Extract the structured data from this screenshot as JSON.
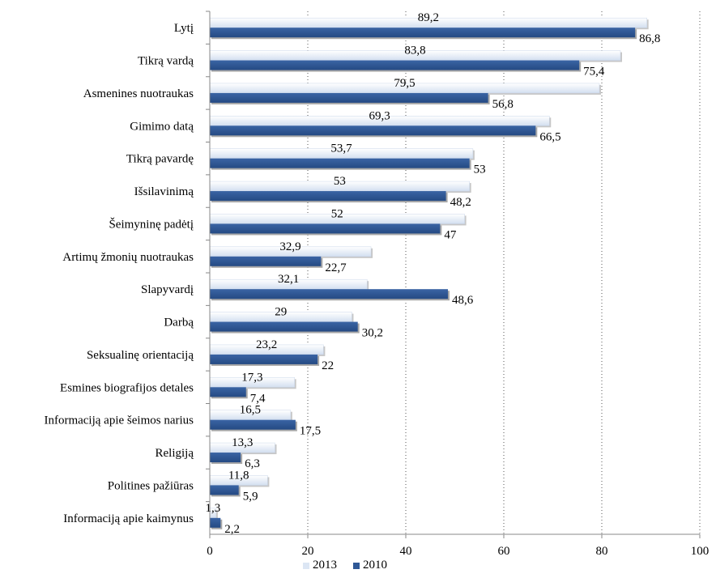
{
  "chart_data": {
    "type": "bar",
    "orientation": "horizontal",
    "categories": [
      "Lytį",
      "Tikrą vardą",
      "Asmenines nuotraukas",
      "Gimimo datą",
      "Tikrą pavardę",
      "Išsilavinimą",
      "Šeimyninę padėtį",
      "Artimų žmonių nuotraukas",
      "Slapyvardį",
      "Darbą",
      "Seksualinę orientaciją",
      "Esmines biografijos detales",
      "Informaciją apie šeimos narius",
      "Religiją",
      "Politines pažiūras",
      "Informaciją apie kaimynus"
    ],
    "series": [
      {
        "name": "2013",
        "color": "#dce6f4",
        "values": [
          89.2,
          83.8,
          79.5,
          69.3,
          53.7,
          53,
          52,
          32.9,
          32.1,
          29,
          23.2,
          17.3,
          16.5,
          13.3,
          11.8,
          1.3
        ],
        "labels": [
          "89,2",
          "83,8",
          "79,5",
          "69,3",
          "53,7",
          "53",
          "52",
          "32,9",
          "32,1",
          "29",
          "23,2",
          "17,3",
          "16,5",
          "13,3",
          "11,8",
          "1,3"
        ]
      },
      {
        "name": "2010",
        "color": "#2f5896",
        "values": [
          86.8,
          75.4,
          56.8,
          66.5,
          53,
          48.2,
          47,
          22.7,
          48.6,
          30.2,
          22,
          7.4,
          17.5,
          6.3,
          5.9,
          2.2
        ],
        "labels": [
          "86,8",
          "75,4",
          "56,8",
          "66,5",
          "53",
          "48,2",
          "47",
          "22,7",
          "48,6",
          "30,2",
          "22",
          "7,4",
          "17,5",
          "6,3",
          "5,9",
          "2,2"
        ]
      }
    ],
    "xlim": [
      0,
      100
    ],
    "xticks": [
      "0",
      "20",
      "40",
      "60",
      "80",
      "100"
    ],
    "grid": "vertical dotted",
    "legend": "bottom"
  }
}
